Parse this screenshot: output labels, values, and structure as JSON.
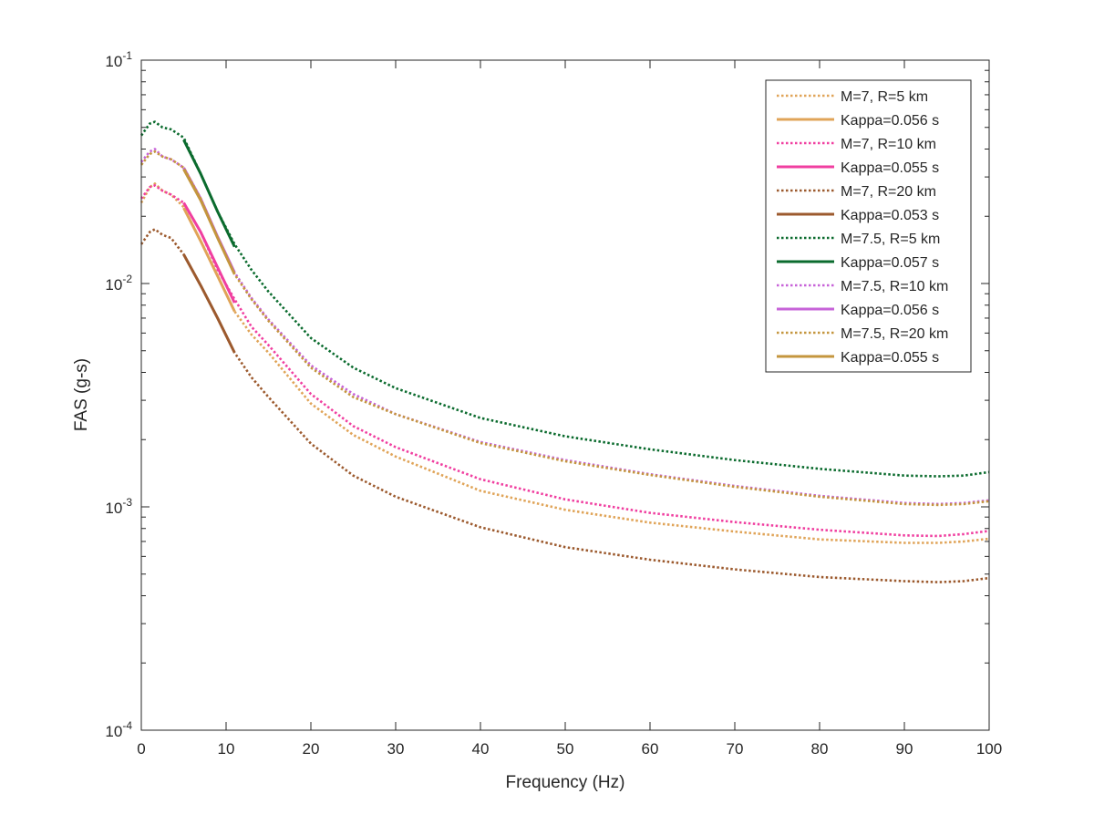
{
  "chart_data": {
    "type": "line",
    "xlabel": "Frequency (Hz)",
    "ylabel": "FAS (g-s)",
    "xlim": [
      0,
      100
    ],
    "ylim": [
      0.0001,
      0.1
    ],
    "yscale": "log",
    "grid": false,
    "legend_position": "top-right",
    "x_ticks": [
      0,
      10,
      20,
      30,
      40,
      50,
      60,
      70,
      80,
      90,
      100
    ],
    "x_tick_labels": [
      "0",
      "10",
      "20",
      "30",
      "40",
      "50",
      "60",
      "70",
      "80",
      "90",
      "100"
    ],
    "y_ticks": [
      0.0001,
      0.001,
      0.01,
      0.1
    ],
    "y_tick_labels": [
      {
        "base": "10",
        "exp": "-4"
      },
      {
        "base": "10",
        "exp": "-3"
      },
      {
        "base": "10",
        "exp": "-2"
      },
      {
        "base": "10",
        "exp": "-1"
      }
    ],
    "series": [
      {
        "name": "M=7, R=5 km",
        "style": "dotted",
        "color": "#E0A458",
        "x": [
          0,
          1,
          1.6,
          2.5,
          3.5,
          5,
          7,
          9,
          11,
          13,
          15,
          20,
          25,
          30,
          40,
          50,
          60,
          70,
          80,
          90,
          94,
          97,
          100
        ],
        "y": [
          0.023,
          0.027,
          0.028,
          0.026,
          0.025,
          0.022,
          0.0155,
          0.0108,
          0.0075,
          0.0059,
          0.0049,
          0.0029,
          0.0021,
          0.00168,
          0.00118,
          0.00097,
          0.00085,
          0.000775,
          0.000715,
          0.00069,
          0.00069,
          0.0007,
          0.00072
        ]
      },
      {
        "name": "Kappa=0.056 s",
        "style": "solid",
        "color": "#E0A458",
        "x": [
          5,
          7,
          9,
          11
        ],
        "y": [
          0.0218,
          0.0155,
          0.0108,
          0.0075
        ]
      },
      {
        "name": "M=7, R=10 km",
        "style": "dotted",
        "color": "#F03FA0",
        "x": [
          0,
          1,
          1.6,
          2.5,
          3.5,
          5,
          7,
          9,
          11,
          13,
          15,
          20,
          25,
          30,
          40,
          50,
          60,
          70,
          80,
          90,
          94,
          97,
          100
        ],
        "y": [
          0.024,
          0.027,
          0.0275,
          0.026,
          0.025,
          0.023,
          0.017,
          0.0115,
          0.0085,
          0.0064,
          0.0053,
          0.0032,
          0.0023,
          0.00185,
          0.00133,
          0.00108,
          0.00094,
          0.000855,
          0.00079,
          0.000745,
          0.00074,
          0.000755,
          0.00078
        ]
      },
      {
        "name": "Kappa=0.055 s",
        "style": "solid",
        "color": "#F03FA0",
        "x": [
          5,
          7,
          9,
          11
        ],
        "y": [
          0.023,
          0.017,
          0.0118,
          0.0082
        ]
      },
      {
        "name": "M=7, R=20 km",
        "style": "dotted",
        "color": "#9C5A2E",
        "x": [
          0,
          1,
          1.6,
          2.5,
          3.5,
          5,
          7,
          9,
          11,
          13,
          15,
          20,
          25,
          30,
          40,
          50,
          60,
          70,
          80,
          90,
          94,
          97,
          100
        ],
        "y": [
          0.015,
          0.017,
          0.0175,
          0.0165,
          0.016,
          0.0135,
          0.0098,
          0.007,
          0.0049,
          0.0038,
          0.0031,
          0.00192,
          0.00138,
          0.00111,
          0.00081,
          0.00066,
          0.00058,
          0.000525,
          0.000485,
          0.000465,
          0.00046,
          0.000465,
          0.00048
        ]
      },
      {
        "name": "Kappa=0.053 s",
        "style": "solid",
        "color": "#9C5A2E",
        "x": [
          5,
          7,
          9,
          11
        ],
        "y": [
          0.0135,
          0.0098,
          0.007,
          0.0049
        ]
      },
      {
        "name": "M=7.5, R=5 km",
        "style": "dotted",
        "color": "#0B6B2E",
        "x": [
          0,
          1,
          1.6,
          2.5,
          3.5,
          5,
          7,
          9,
          11,
          13,
          15,
          20,
          25,
          30,
          40,
          50,
          60,
          70,
          80,
          90,
          94,
          97,
          100
        ],
        "y": [
          0.046,
          0.052,
          0.053,
          0.05,
          0.049,
          0.045,
          0.031,
          0.021,
          0.015,
          0.0115,
          0.0092,
          0.0057,
          0.0042,
          0.0034,
          0.0025,
          0.00207,
          0.00181,
          0.00162,
          0.00148,
          0.00138,
          0.00137,
          0.00138,
          0.00143
        ]
      },
      {
        "name": "Kappa=0.057 s",
        "style": "solid",
        "color": "#0B6B2E",
        "x": [
          5,
          7,
          9,
          11
        ],
        "y": [
          0.044,
          0.031,
          0.021,
          0.0146
        ]
      },
      {
        "name": "M=7.5, R=10 km",
        "style": "dotted",
        "color": "#C763D8",
        "x": [
          0,
          1,
          1.6,
          2.5,
          3.5,
          5,
          7,
          9,
          11,
          13,
          15,
          20,
          25,
          30,
          40,
          50,
          60,
          70,
          80,
          90,
          94,
          97,
          100
        ],
        "y": [
          0.035,
          0.039,
          0.04,
          0.037,
          0.036,
          0.033,
          0.024,
          0.0162,
          0.0112,
          0.0086,
          0.0069,
          0.0043,
          0.0032,
          0.0026,
          0.00195,
          0.00162,
          0.0014,
          0.00124,
          0.00112,
          0.00104,
          0.00103,
          0.00104,
          0.00107
        ]
      },
      {
        "name": "Kappa=0.056 s",
        "style": "solid",
        "color": "#C763D8",
        "x": [
          5,
          7,
          9,
          11
        ],
        "y": [
          0.033,
          0.024,
          0.0162,
          0.0112
        ]
      },
      {
        "name": "M=7.5, R=20 km",
        "style": "dotted",
        "color": "#C4963E",
        "x": [
          0,
          1,
          1.6,
          2.5,
          3.5,
          5,
          7,
          9,
          11,
          13,
          15,
          20,
          25,
          30,
          40,
          50,
          60,
          70,
          80,
          90,
          94,
          97,
          100
        ],
        "y": [
          0.034,
          0.038,
          0.039,
          0.037,
          0.036,
          0.033,
          0.024,
          0.016,
          0.011,
          0.0085,
          0.0068,
          0.0042,
          0.0031,
          0.0026,
          0.00193,
          0.0016,
          0.00139,
          0.00123,
          0.00111,
          0.00103,
          0.00102,
          0.00103,
          0.00106
        ]
      },
      {
        "name": "Kappa=0.055 s",
        "style": "solid",
        "color": "#C4963E",
        "x": [
          5,
          7,
          9,
          11
        ],
        "y": [
          0.0325,
          0.0236,
          0.016,
          0.011
        ]
      }
    ]
  }
}
